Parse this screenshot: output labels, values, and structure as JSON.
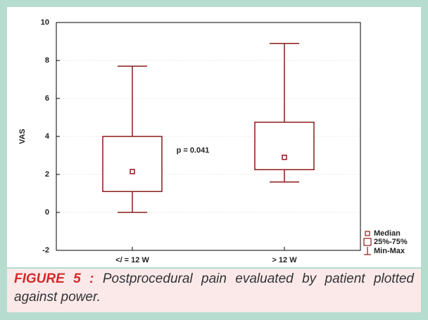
{
  "chart_data": {
    "type": "box",
    "y_label": "VAS",
    "categories": [
      "</ = 12 W",
      "> 12 W"
    ],
    "boxes": [
      {
        "min": 0,
        "q1": 1.1,
        "median": 2.15,
        "q3": 4.0,
        "max": 7.7
      },
      {
        "min": 1.6,
        "q1": 2.25,
        "median": 2.9,
        "q3": 4.75,
        "max": 8.9
      }
    ],
    "color": "#8b1a1a",
    "ylim": [
      -2,
      10
    ],
    "yticks": [
      -2,
      0,
      2,
      4,
      6,
      8,
      10
    ],
    "grid": true,
    "annotation": "p = 0.041",
    "legend": [
      "Median",
      "25%-75%",
      "Min-Max"
    ]
  },
  "caption": {
    "label": "FIGURE 5 :",
    "text": "Postprocedural pain evaluated by patient plotted against power."
  }
}
